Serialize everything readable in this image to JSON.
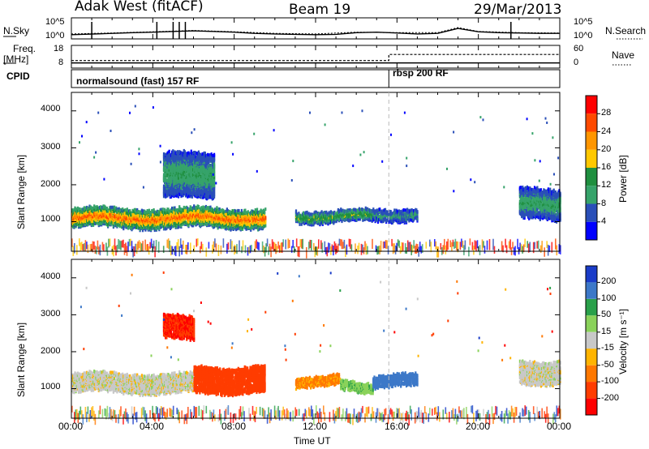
{
  "header": {
    "station": "Adak West (fitACF)",
    "beam": "Beam 19",
    "date": "29/Mar/2013"
  },
  "left_labels": {
    "nsky": "N.Sky",
    "freq": "Freq.",
    "freq_unit": "[MHz]",
    "cpid": "CPID"
  },
  "right_labels": {
    "nsearch": "N.Search",
    "nave": "Nave"
  },
  "top_panel": {
    "ticks_left": [
      "10^5",
      "10^0"
    ],
    "ticks_right": [
      "10^5",
      "10^0"
    ]
  },
  "freq_panel": {
    "ticks_left": [
      "18",
      "8"
    ],
    "ticks_right": [
      "60",
      "0"
    ]
  },
  "cpid_segments": [
    {
      "label": "normalsound (fast) 157 RF",
      "start_hour": 0
    },
    {
      "label": "rbsp 200 RF",
      "start_hour": 15.6
    }
  ],
  "colorbars": {
    "power": {
      "label": "Power [dB]",
      "ticks": [
        "28",
        "24",
        "20",
        "16",
        "12",
        "8",
        "4"
      ],
      "colors": [
        "#ff0000",
        "#ff4a00",
        "#ff9600",
        "#ffc800",
        "#1f8f3f",
        "#36a36a",
        "#2a4fb8",
        "#0000ff"
      ]
    },
    "velocity": {
      "label": "Velocity [m s⁻¹]",
      "ticks": [
        "200",
        "100",
        "50",
        "15",
        "-15",
        "-50",
        "-100",
        "-200"
      ],
      "colors": [
        "#1a3cc8",
        "#3c78c8",
        "#2aa04a",
        "#8ad25a",
        "#c8c8c8",
        "#ffb400",
        "#ff7800",
        "#ff3c00",
        "#ff0000"
      ]
    }
  },
  "chart_data": [
    {
      "type": "line",
      "title": "N.Sky / N.Search",
      "xlim": [
        0,
        24
      ],
      "y_scale": "log",
      "ylim": [
        1,
        100000
      ],
      "x_tick_labels": [
        "00:00",
        "04:00",
        "08:00",
        "12:00",
        "16:00",
        "20:00",
        "00:00"
      ],
      "series": [
        {
          "name": "N.Sky",
          "x": [
            0,
            1,
            2,
            3,
            4,
            5,
            6,
            7,
            8,
            9,
            10,
            11,
            12,
            13,
            14,
            15,
            16,
            17,
            18,
            19,
            20,
            21,
            22,
            23,
            24
          ],
          "y": [
            10,
            14,
            20,
            30,
            40,
            60,
            80,
            60,
            40,
            20,
            15,
            12,
            10,
            12,
            30,
            40,
            25,
            15,
            20,
            300,
            50,
            30,
            25,
            20,
            20
          ]
        },
        {
          "name": "N.Search",
          "x": [
            0,
            2,
            4,
            6,
            8,
            10,
            12,
            14,
            16,
            18,
            19,
            20,
            22,
            24
          ],
          "y": [
            15,
            25,
            50,
            100,
            50,
            20,
            15,
            40,
            30,
            30,
            500,
            60,
            30,
            25
          ]
        }
      ]
    },
    {
      "type": "line",
      "title": "Freq. [MHz] / Nave",
      "xlim": [
        0,
        24
      ],
      "ylim_left": [
        8,
        18
      ],
      "ylim_right": [
        0,
        60
      ],
      "series": [
        {
          "name": "Freq.",
          "x": [
            0,
            15.6,
            15.6,
            24
          ],
          "y": [
            10.3,
            10.3,
            10.3,
            10.3
          ]
        },
        {
          "name": "Nave",
          "x": [
            0,
            15.6,
            15.6,
            24
          ],
          "y": [
            20,
            20,
            36,
            36
          ]
        }
      ]
    },
    {
      "type": "heatmap",
      "quantity": "Power",
      "xlabel": "Time UT",
      "ylabel": "Slant Range [km]",
      "xlim": [
        0,
        24
      ],
      "ylim": [
        200,
        4500
      ],
      "y_ticks": [
        1000,
        2000,
        3000,
        4000
      ],
      "colorbar_label": "Power [dB]",
      "colorbar_ticks": [
        4,
        8,
        12,
        16,
        20,
        24,
        28
      ],
      "echo_regions": [
        {
          "t_start": 0.0,
          "t_end": 9.5,
          "range_center_km": 1150,
          "range_halfwidth_km": 250,
          "peak_db": 24
        },
        {
          "t_start": 4.5,
          "t_end": 7.0,
          "range_center_km": 2300,
          "range_halfwidth_km": 600,
          "peak_db": 10
        },
        {
          "t_start": 11.0,
          "t_end": 14.8,
          "range_center_km": 1200,
          "range_halfwidth_km": 150,
          "peak_db": 14
        },
        {
          "t_start": 14.8,
          "t_end": 17.0,
          "range_center_km": 1250,
          "range_halfwidth_km": 150,
          "peak_db": 8
        },
        {
          "t_start": 22.0,
          "t_end": 24.0,
          "range_center_km": 1500,
          "range_halfwidth_km": 400,
          "peak_db": 10
        }
      ]
    },
    {
      "type": "heatmap",
      "quantity": "Velocity",
      "xlabel": "Time UT",
      "ylabel": "Slant Range [km]",
      "xlim": [
        0,
        24
      ],
      "ylim": [
        200,
        4500
      ],
      "y_ticks": [
        1000,
        2000,
        3000,
        4000
      ],
      "colorbar_label": "Velocity [m s⁻¹]",
      "colorbar_ticks": [
        -200,
        -100,
        -50,
        -15,
        15,
        50,
        100,
        200
      ],
      "echo_regions": [
        {
          "t_start": 0.0,
          "t_end": 6.0,
          "range_center_km": 1200,
          "range_halfwidth_km": 250,
          "velocity_ms": 0
        },
        {
          "t_start": 6.0,
          "t_end": 9.5,
          "range_center_km": 1300,
          "range_halfwidth_km": 350,
          "velocity_ms": -150
        },
        {
          "t_start": 4.5,
          "t_end": 6.0,
          "range_center_km": 2700,
          "range_halfwidth_km": 300,
          "velocity_ms": -200
        },
        {
          "t_start": 11.0,
          "t_end": 13.2,
          "range_center_km": 1250,
          "range_halfwidth_km": 120,
          "velocity_ms": -60
        },
        {
          "t_start": 13.2,
          "t_end": 14.8,
          "range_center_km": 1100,
          "range_halfwidth_km": 120,
          "velocity_ms": 40
        },
        {
          "t_start": 14.8,
          "t_end": 17.0,
          "range_center_km": 1250,
          "range_halfwidth_km": 150,
          "velocity_ms": 120
        },
        {
          "t_start": 22.0,
          "t_end": 24.0,
          "range_center_km": 1500,
          "range_halfwidth_km": 300,
          "velocity_ms": 0
        }
      ]
    }
  ]
}
